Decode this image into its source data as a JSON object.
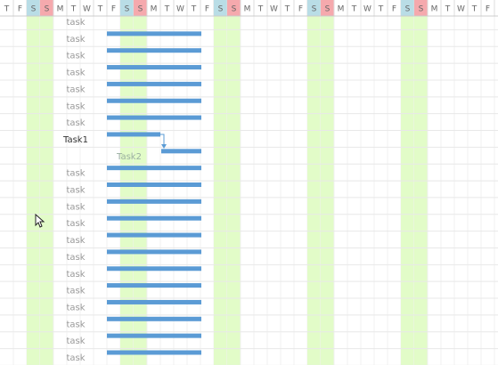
{
  "header": {
    "days": [
      "T",
      "F",
      "S",
      "S",
      "M",
      "T",
      "W",
      "T",
      "F",
      "S",
      "S",
      "M",
      "T",
      "W",
      "T",
      "F",
      "S",
      "S",
      "M",
      "T",
      "W",
      "T",
      "F",
      "S",
      "S",
      "M",
      "T",
      "W",
      "T",
      "F",
      "S",
      "S",
      "M",
      "T",
      "W",
      "T",
      "F"
    ]
  },
  "rows": [
    {
      "label": "task"
    },
    {
      "label": "task"
    },
    {
      "label": "task"
    },
    {
      "label": "task"
    },
    {
      "label": "task"
    },
    {
      "label": "task"
    },
    {
      "label": "task"
    },
    {
      "label": "Task1"
    },
    {
      "label": "Task2"
    },
    {
      "label": "task"
    },
    {
      "label": "task"
    },
    {
      "label": "task"
    },
    {
      "label": "task"
    },
    {
      "label": "task"
    },
    {
      "label": "task"
    },
    {
      "label": "task"
    },
    {
      "label": "task"
    },
    {
      "label": "task"
    },
    {
      "label": "task"
    },
    {
      "label": "task"
    },
    {
      "label": "task"
    }
  ]
}
